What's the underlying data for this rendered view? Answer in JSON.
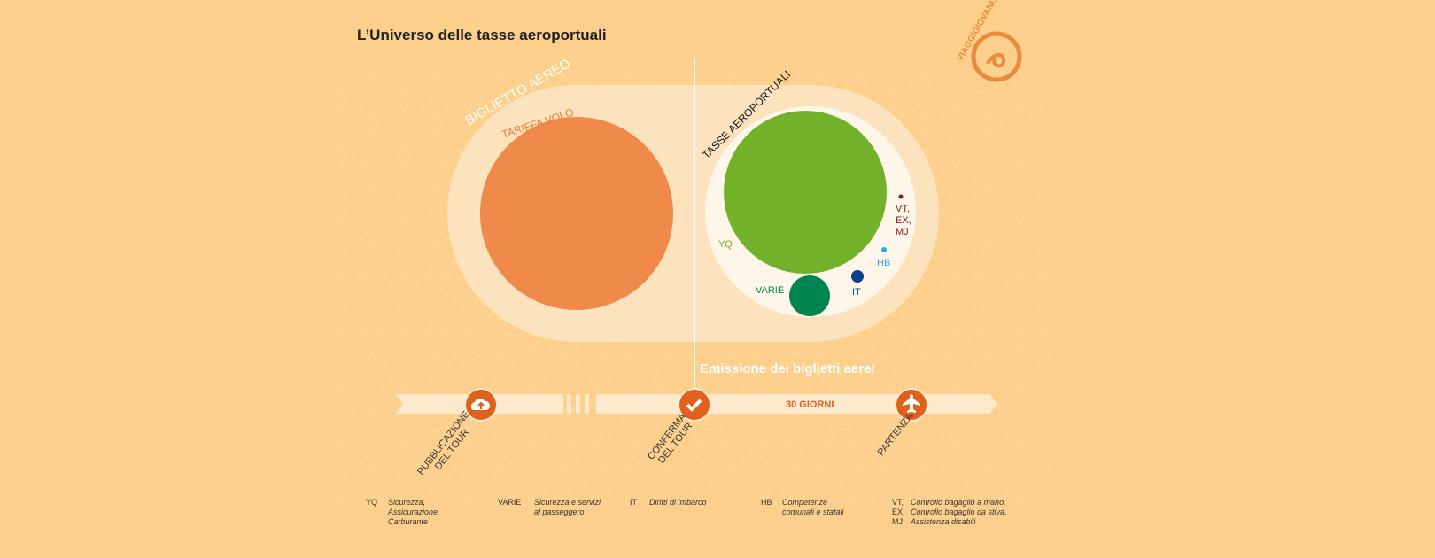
{
  "title": "L’Universo delle tasse aeroportuali",
  "logo_text": "VIAGGIGIOVANI.IT",
  "bubbles": {
    "ticket_label": "BIGLIETTO AEREO",
    "fare_label": "TARIFFA VOLO",
    "taxes_label": "TASSE AEROPORTUALI",
    "yq": "YQ",
    "varie": "VARIE",
    "it": "IT",
    "hb": "HB",
    "vt": "VT,",
    "ex": "EX,",
    "mj": "MJ"
  },
  "colors": {
    "background": "#fcd08c",
    "fare": "#ef8a4a",
    "yq": "#72b22a",
    "varie": "#008550",
    "it": "#0d3f8f",
    "hb": "#2aa6dc",
    "vt": "#8b1a1a",
    "milestone": "#e0601d"
  },
  "timeline": {
    "emission_label": "Emissione dei biglietti aerei",
    "days_label": "30 GIORNI",
    "milestones": [
      {
        "icon": "cloud-upload-icon",
        "line1": "PUBBLICAZIONE",
        "line2": "DEL TOUR"
      },
      {
        "icon": "checkmark-icon",
        "line1": "CONFERMA",
        "line2": "DEL TOUR"
      },
      {
        "icon": "airplane-icon",
        "line1": "PARTENZA",
        "line2": ""
      }
    ]
  },
  "legend": [
    {
      "key": "YQ",
      "lines": [
        "Sicurezza,",
        "Assicurazione,",
        "Carburante"
      ]
    },
    {
      "key": "VARIE",
      "lines": [
        "Sicurezza e servizi",
        "al passeggero"
      ]
    },
    {
      "key": "IT",
      "lines": [
        "Diritti di imbarco"
      ]
    },
    {
      "key": "HB",
      "lines": [
        "Competenze",
        "comunali e statali"
      ]
    },
    {
      "key": "VT,\nEX,\nMJ",
      "keys": [
        "VT,",
        "EX,",
        "MJ"
      ],
      "lines": [
        "Controllo bagaglio a mano,",
        "Controllo bagaglio da stiva,",
        "Assistenza disabili"
      ]
    }
  ]
}
